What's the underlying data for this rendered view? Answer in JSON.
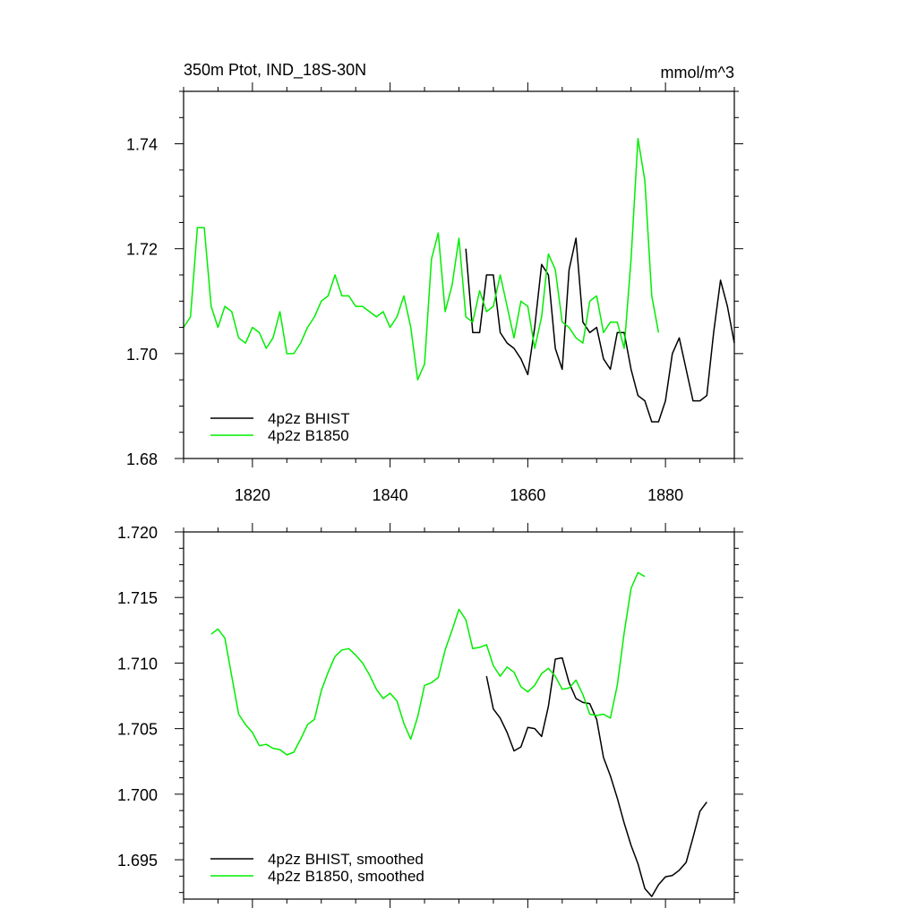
{
  "chart_data": [
    {
      "type": "line",
      "title": "350m Ptot, IND_18S-30N",
      "units": "mmol/m^3",
      "xlim": [
        1810,
        1890
      ],
      "ylim": [
        1.68,
        1.75
      ],
      "x_ticks": [
        1820,
        1840,
        1860,
        1880
      ],
      "x_tick_labels": [
        "1820",
        "1840",
        "1860",
        "1880"
      ],
      "y_ticks": [
        1.68,
        1.7,
        1.72,
        1.74
      ],
      "y_tick_labels": [
        "1.68",
        "1.70",
        "1.72",
        "1.74"
      ],
      "legend_position": "bottom-left",
      "series": [
        {
          "name": "4p2z BHIST",
          "color": "#000000",
          "x": [
            1851,
            1852,
            1853,
            1854,
            1855,
            1856,
            1857,
            1858,
            1859,
            1860,
            1861,
            1862,
            1863,
            1864,
            1865,
            1866,
            1867,
            1868,
            1869,
            1870,
            1871,
            1872,
            1873,
            1874,
            1875,
            1876,
            1877,
            1878,
            1879,
            1880,
            1881,
            1882,
            1883,
            1884,
            1885,
            1886,
            1887,
            1888,
            1889,
            1890
          ],
          "values": [
            1.72,
            1.704,
            1.704,
            1.715,
            1.715,
            1.704,
            1.702,
            1.701,
            1.699,
            1.696,
            1.705,
            1.717,
            1.715,
            1.701,
            1.697,
            1.716,
            1.722,
            1.706,
            1.704,
            1.705,
            1.699,
            1.697,
            1.704,
            1.704,
            1.697,
            1.692,
            1.691,
            1.687,
            1.687,
            1.691,
            1.7,
            1.703,
            1.697,
            1.691,
            1.691,
            1.692,
            1.704,
            1.714,
            1.709,
            1.702
          ]
        },
        {
          "name": "4p2z B1850",
          "color": "#00ee00",
          "x": [
            1810,
            1811,
            1812,
            1813,
            1814,
            1815,
            1816,
            1817,
            1818,
            1819,
            1820,
            1821,
            1822,
            1823,
            1824,
            1825,
            1826,
            1827,
            1828,
            1829,
            1830,
            1831,
            1832,
            1833,
            1834,
            1835,
            1836,
            1837,
            1838,
            1839,
            1840,
            1841,
            1842,
            1843,
            1844,
            1845,
            1846,
            1847,
            1848,
            1849,
            1850,
            1851,
            1852,
            1853,
            1854,
            1855,
            1856,
            1857,
            1858,
            1859,
            1860,
            1861,
            1862,
            1863,
            1864,
            1865,
            1866,
            1867,
            1868,
            1869,
            1870,
            1871,
            1872,
            1873,
            1874,
            1875,
            1876,
            1877,
            1878,
            1879
          ],
          "values": [
            1.705,
            1.707,
            1.724,
            1.724,
            1.709,
            1.705,
            1.709,
            1.708,
            1.703,
            1.702,
            1.705,
            1.704,
            1.701,
            1.703,
            1.708,
            1.7,
            1.7,
            1.702,
            1.705,
            1.707,
            1.71,
            1.711,
            1.715,
            1.711,
            1.711,
            1.709,
            1.709,
            1.708,
            1.707,
            1.708,
            1.705,
            1.707,
            1.711,
            1.705,
            1.695,
            1.698,
            1.718,
            1.723,
            1.708,
            1.713,
            1.722,
            1.707,
            1.706,
            1.712,
            1.708,
            1.709,
            1.715,
            1.709,
            1.703,
            1.71,
            1.709,
            1.701,
            1.707,
            1.719,
            1.716,
            1.706,
            1.705,
            1.703,
            1.702,
            1.71,
            1.711,
            1.704,
            1.706,
            1.706,
            1.701,
            1.718,
            1.741,
            1.733,
            1.711,
            1.704
          ]
        }
      ]
    },
    {
      "type": "line",
      "title": "",
      "xlim": [
        1810,
        1890
      ],
      "ylim": [
        1.692,
        1.72
      ],
      "x_ticks": [
        1820,
        1840,
        1860,
        1880
      ],
      "y_ticks": [
        1.695,
        1.7,
        1.705,
        1.71,
        1.715,
        1.72
      ],
      "y_tick_labels": [
        "1.695",
        "1.700",
        "1.705",
        "1.710",
        "1.715",
        "1.720"
      ],
      "legend_position": "bottom-left",
      "series": [
        {
          "name": "4p2z BHIST, smoothed",
          "color": "#000000",
          "x": [
            1854,
            1855,
            1856,
            1857,
            1858,
            1859,
            1860,
            1861,
            1862,
            1863,
            1864,
            1865,
            1866,
            1867,
            1868,
            1869,
            1870,
            1871,
            1872,
            1873,
            1874,
            1875,
            1876,
            1877,
            1878,
            1879,
            1880,
            1881,
            1882,
            1883,
            1884,
            1885,
            1886
          ],
          "values": [
            1.709,
            1.7065,
            1.7058,
            1.7047,
            1.7033,
            1.7036,
            1.7051,
            1.705,
            1.7044,
            1.7067,
            1.7103,
            1.7104,
            1.7085,
            1.7073,
            1.707,
            1.7069,
            1.7057,
            1.7028,
            1.7014,
            1.6997,
            1.6978,
            1.6961,
            1.6947,
            1.6928,
            1.6922,
            1.6931,
            1.6937,
            1.6938,
            1.6942,
            1.6948,
            1.6967,
            1.6987,
            1.6994
          ]
        },
        {
          "name": "4p2z B1850, smoothed",
          "color": "#00ee00",
          "x": [
            1814,
            1815,
            1816,
            1817,
            1818,
            1819,
            1820,
            1821,
            1822,
            1823,
            1824,
            1825,
            1826,
            1827,
            1828,
            1829,
            1830,
            1831,
            1832,
            1833,
            1834,
            1835,
            1836,
            1837,
            1838,
            1839,
            1840,
            1841,
            1842,
            1843,
            1844,
            1845,
            1846,
            1847,
            1848,
            1849,
            1850,
            1851,
            1852,
            1853,
            1854,
            1855,
            1856,
            1857,
            1858,
            1859,
            1860,
            1861,
            1862,
            1863,
            1864,
            1865,
            1866,
            1867,
            1868,
            1869,
            1870,
            1871,
            1872,
            1873,
            1874,
            1875,
            1876,
            1877
          ],
          "values": [
            1.7122,
            1.7126,
            1.7119,
            1.709,
            1.7061,
            1.7053,
            1.7047,
            1.7037,
            1.7038,
            1.7035,
            1.7034,
            1.703,
            1.7032,
            1.7042,
            1.7053,
            1.7057,
            1.7079,
            1.7093,
            1.7105,
            1.711,
            1.7111,
            1.7106,
            1.71,
            1.7091,
            1.708,
            1.7073,
            1.7077,
            1.7071,
            1.7054,
            1.7042,
            1.7059,
            1.7083,
            1.7085,
            1.7089,
            1.711,
            1.7125,
            1.7141,
            1.7133,
            1.7111,
            1.7112,
            1.7114,
            1.7098,
            1.709,
            1.7097,
            1.7093,
            1.7082,
            1.7078,
            1.7083,
            1.7092,
            1.7096,
            1.709,
            1.708,
            1.7081,
            1.7087,
            1.7076,
            1.7061,
            1.706,
            1.7061,
            1.7058,
            1.7083,
            1.7123,
            1.7157,
            1.7169,
            1.7166
          ]
        }
      ]
    }
  ]
}
